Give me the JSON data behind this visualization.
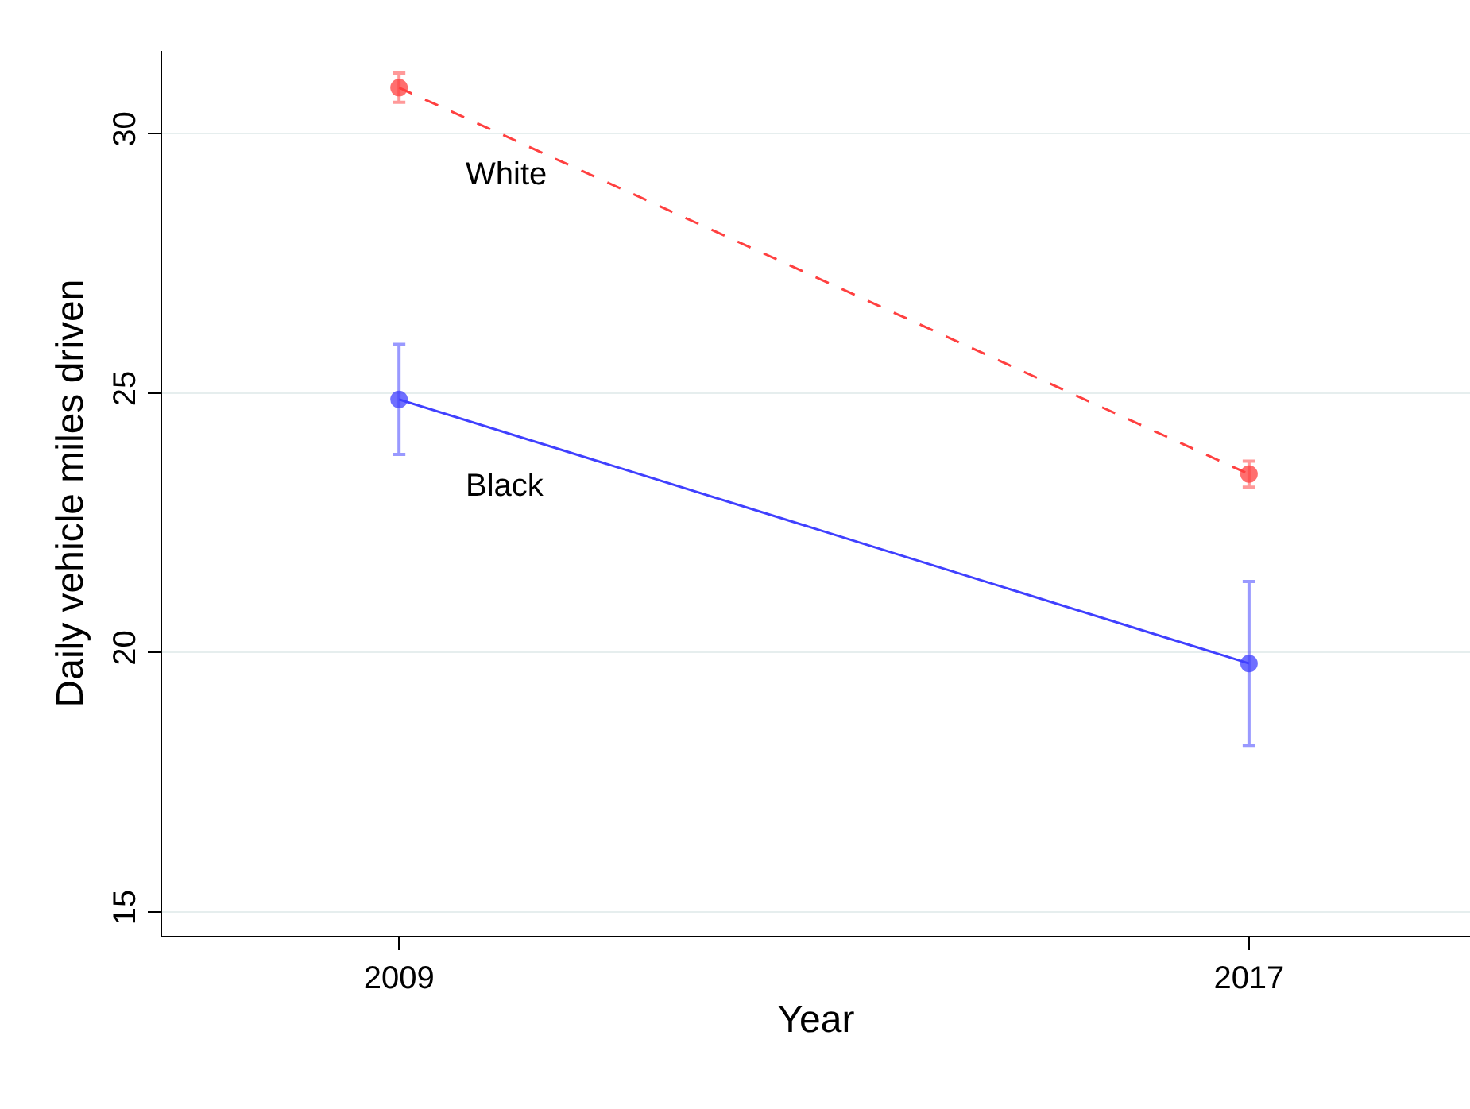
{
  "chart_data": {
    "type": "line",
    "xlabel": "Year",
    "ylabel": "Daily vehicle miles driven",
    "x": [
      2009,
      2017
    ],
    "series": [
      {
        "name": "White",
        "color": "#ff4040",
        "values": [
          30.89,
          23.44
        ],
        "errors": [
          0.28,
          0.25
        ],
        "line_style": "dashed"
      },
      {
        "name": "Black",
        "color": "#4040ff",
        "values": [
          24.88,
          19.79
        ],
        "errors": [
          1.06,
          1.58
        ],
        "line_style": "solid"
      }
    ],
    "xlim": [
      2006.77,
      2019.08
    ],
    "xticks": [
      2009,
      2017
    ],
    "ylim": [
      14.54,
      31.6
    ],
    "yticks": [
      15,
      20,
      25,
      30
    ],
    "grid": "y",
    "marker": "circle",
    "legend": false
  }
}
